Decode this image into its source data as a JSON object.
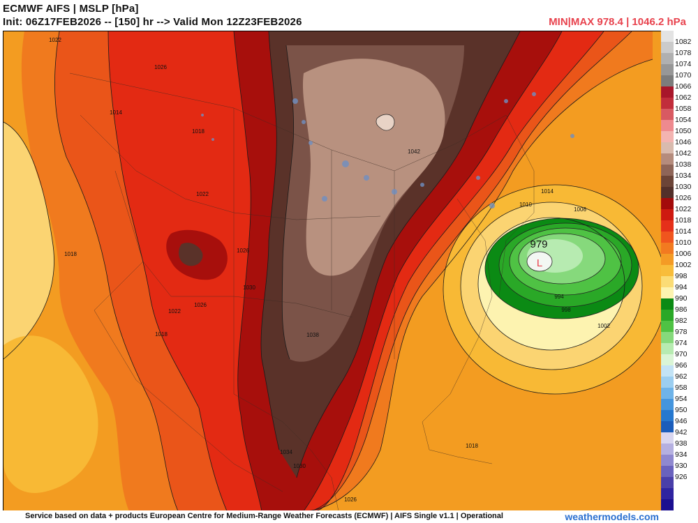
{
  "header": {
    "title_line1": "ECMWF AIFS | MSLP [hPa]",
    "title_line2": "Init: 06Z17FEB2026 -- [150] hr --> Valid Mon 12Z23FEB2026",
    "minmax": "MIN|MAX 978.4 | 1046.2 hPa"
  },
  "map": {
    "low_center_value": "979",
    "low_marker": "L",
    "contour_labels": {
      "c1022_nw": "1022",
      "c1026_n": "1026",
      "c1014_nw": "1014",
      "c1018_w": "1018",
      "c1022_mid": "1022",
      "c1026_mid": "1026",
      "c1030_mid": "1030",
      "c1018_pac": "1018",
      "c1022_sw": "1022",
      "c1026_sw": "1026",
      "c1018_sw": "1018",
      "c1042_cen": "1042",
      "c1038_cen": "1038",
      "c1034_gulf": "1034",
      "c1030_gulf": "1030",
      "c1026_s": "1026",
      "c1014_ne": "1014",
      "c1010_ne": "1010",
      "c1006_ne": "1006",
      "c994_low": "994",
      "c998_low": "998",
      "c1002_low": "1002",
      "c1018_carib": "1018"
    }
  },
  "colorbar": {
    "levels": [
      {
        "label": "1082",
        "color": "#e3e3e3"
      },
      {
        "label": "1078",
        "color": "#cbcbcb"
      },
      {
        "label": "1074",
        "color": "#b0b0b0"
      },
      {
        "label": "1070",
        "color": "#979797"
      },
      {
        "label": "1066",
        "color": "#7c7c7c"
      },
      {
        "label": "1062",
        "color": "#a8162a"
      },
      {
        "label": "1058",
        "color": "#c12d3b"
      },
      {
        "label": "1054",
        "color": "#d85a62"
      },
      {
        "label": "1050",
        "color": "#ee8a8f"
      },
      {
        "label": "1046",
        "color": "#f3b4b1"
      },
      {
        "label": "1042",
        "color": "#d9bbae"
      },
      {
        "label": "1038",
        "color": "#b58c7d"
      },
      {
        "label": "1034",
        "color": "#8e6558"
      },
      {
        "label": "1030",
        "color": "#6b4437"
      },
      {
        "label": "1026",
        "color": "#52302a"
      },
      {
        "label": "1022",
        "color": "#a30b0b"
      },
      {
        "label": "1018",
        "color": "#ce1a10"
      },
      {
        "label": "1014",
        "color": "#e5301a"
      },
      {
        "label": "1010",
        "color": "#f0551e"
      },
      {
        "label": "1006",
        "color": "#f27a20"
      },
      {
        "label": "1002",
        "color": "#f49b25"
      },
      {
        "label": "998",
        "color": "#f8bd3b"
      },
      {
        "label": "994",
        "color": "#fbdc76"
      },
      {
        "label": "990",
        "color": "#fdf3b0"
      },
      {
        "label": "986",
        "color": "#0b8a14"
      },
      {
        "label": "982",
        "color": "#2aa827"
      },
      {
        "label": "978",
        "color": "#4fc244"
      },
      {
        "label": "974",
        "color": "#86d97c"
      },
      {
        "label": "970",
        "color": "#b7ebb1"
      },
      {
        "label": "966",
        "color": "#daf5d6"
      },
      {
        "label": "962",
        "color": "#c3e3f5"
      },
      {
        "label": "958",
        "color": "#9ccef0"
      },
      {
        "label": "954",
        "color": "#6fb3e8"
      },
      {
        "label": "950",
        "color": "#4595dd"
      },
      {
        "label": "946",
        "color": "#2678cf"
      },
      {
        "label": "942",
        "color": "#1b5dbb"
      },
      {
        "label": "938",
        "color": "#d9d6ef"
      },
      {
        "label": "934",
        "color": "#b5b0e0"
      },
      {
        "label": "930",
        "color": "#8f88cf"
      },
      {
        "label": "926",
        "color": "#6a62bd"
      },
      {
        "label": "",
        "color": "#4a3fa9"
      },
      {
        "label": "",
        "color": "#2f24a0"
      },
      {
        "label": "",
        "color": "#1b0f90"
      }
    ]
  },
  "footer": {
    "credit": "Service based on data + products European Centre for Medium-Range Weather Forecasts (ECMWF) | AIFS Single v1.1 | Operational",
    "site": "weathermodels.com"
  }
}
